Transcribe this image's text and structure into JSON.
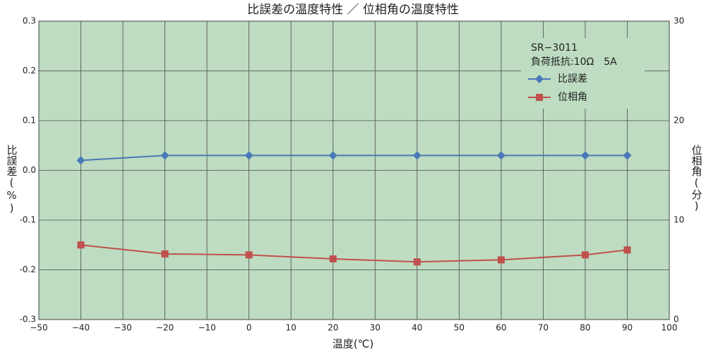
{
  "chart_data": {
    "type": "line",
    "title": "比誤差の温度特性 ／ 位相角の温度特性",
    "x_label": "温度(℃)",
    "y_label": "比誤差(%)",
    "y2_label": "位相角(分)",
    "annotations": [
      "SR−3011",
      "負荷抵抗:10Ω　5A"
    ],
    "x": [
      -40,
      -20,
      0,
      20,
      40,
      60,
      80,
      90
    ],
    "series": [
      {
        "name": "比誤差",
        "color": "#4a78b8",
        "marker": "diamond",
        "values": [
          0.02,
          0.03,
          0.03,
          0.03,
          0.03,
          0.03,
          0.03,
          0.03
        ]
      },
      {
        "name": "位相角",
        "color": "#c0504d",
        "marker": "square",
        "axis": "y2",
        "values": [
          7.5,
          6.6,
          6.5,
          6.1,
          5.8,
          6.0,
          6.5,
          7.0
        ]
      }
    ],
    "xlim": [
      -50,
      100
    ],
    "xticks": [
      {
        "value": -50,
        "label": "−50"
      },
      {
        "value": -40,
        "label": "−40"
      },
      {
        "value": -30,
        "label": "−30"
      },
      {
        "value": -20,
        "label": "−20"
      },
      {
        "value": -10,
        "label": "−10"
      },
      0,
      10,
      20,
      30,
      40,
      50,
      60,
      70,
      80,
      90,
      100
    ],
    "ylim": [
      -0.3,
      0.3
    ],
    "yticks": [
      -0.3,
      -0.2,
      -0.1,
      {
        "value": 0,
        "label": "0.0"
      },
      0.1,
      0.2,
      0.3
    ],
    "y2lim": [
      0,
      30
    ],
    "y2ticks": [
      0,
      10,
      20,
      30
    ],
    "grid": true,
    "background": "#bddcc1"
  }
}
